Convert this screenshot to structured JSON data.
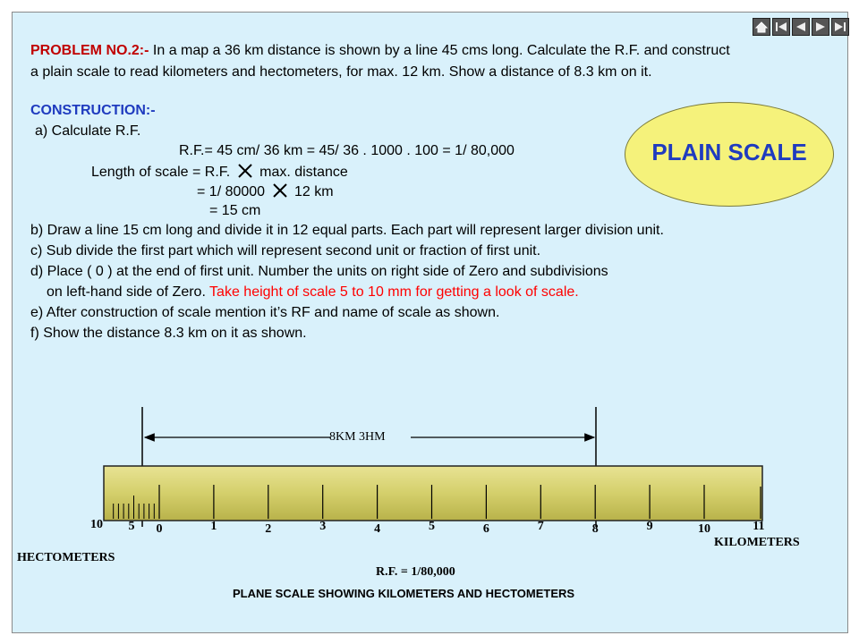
{
  "nav": [
    "home-icon",
    "first-slide-icon",
    "previous-slide-icon",
    "next-slide-icon",
    "last-slide-icon"
  ],
  "problem": {
    "label": "PROBLEM NO.2:-",
    "line1": " In a map a 36 km distance is shown by a line 45 cms long. Calculate the R.F. and construct",
    "line2": "a plain scale to read kilometers and hectometers, for max. 12 km. Show a distance of 8.3 km on it."
  },
  "badge": "PLAIN SCALE",
  "construction": {
    "title": "CONSTRUCTION:-",
    "a": "a) Calculate R.F.",
    "rf_line": "R.F.= 45 cm/ 36 km = 45/ 36 . 1000 . 100 = 1/ 80,000",
    "len1_a": "Length of scale = R.F.",
    "len1_b": "max. distance",
    "len2_a": "= 1/ 80000",
    "len2_b": "12 km",
    "len3": "= 15 cm",
    "b": "b) Draw a line 15 cm long and divide it in 12 equal parts. Each part will represent larger division unit.",
    "c": "c) Sub divide the first part which will represent second unit or fraction of first unit.",
    "d1": "d) Place ( 0 ) at the end of first unit. Number the units on right side of Zero and subdivisions",
    "d2_a": "on left-hand side of Zero.",
    "d2_b": " Take height of scale 5 to 10 mm for getting a look of scale.",
    "e": "e) After construction of scale mention it’s RF and name of scale as shown.",
    "f": " f) Show the distance 8.3 km on it as shown."
  },
  "scale": {
    "dimension_label": "8KM  3HM",
    "sub_labels": [
      "10",
      "5"
    ],
    "main_labels": [
      "0",
      "1",
      "2",
      "3",
      "4",
      "5",
      "6",
      "7",
      "8",
      "9",
      "10",
      "11"
    ],
    "unit_right": "KILOMETERS",
    "unit_left": "HECTOMETERS",
    "rf": "R.F. = 1/80,000",
    "caption": "PLANE SCALE SHOWING KILOMETERS AND HECTOMETERS",
    "bar_color": "#d4cf6b"
  }
}
